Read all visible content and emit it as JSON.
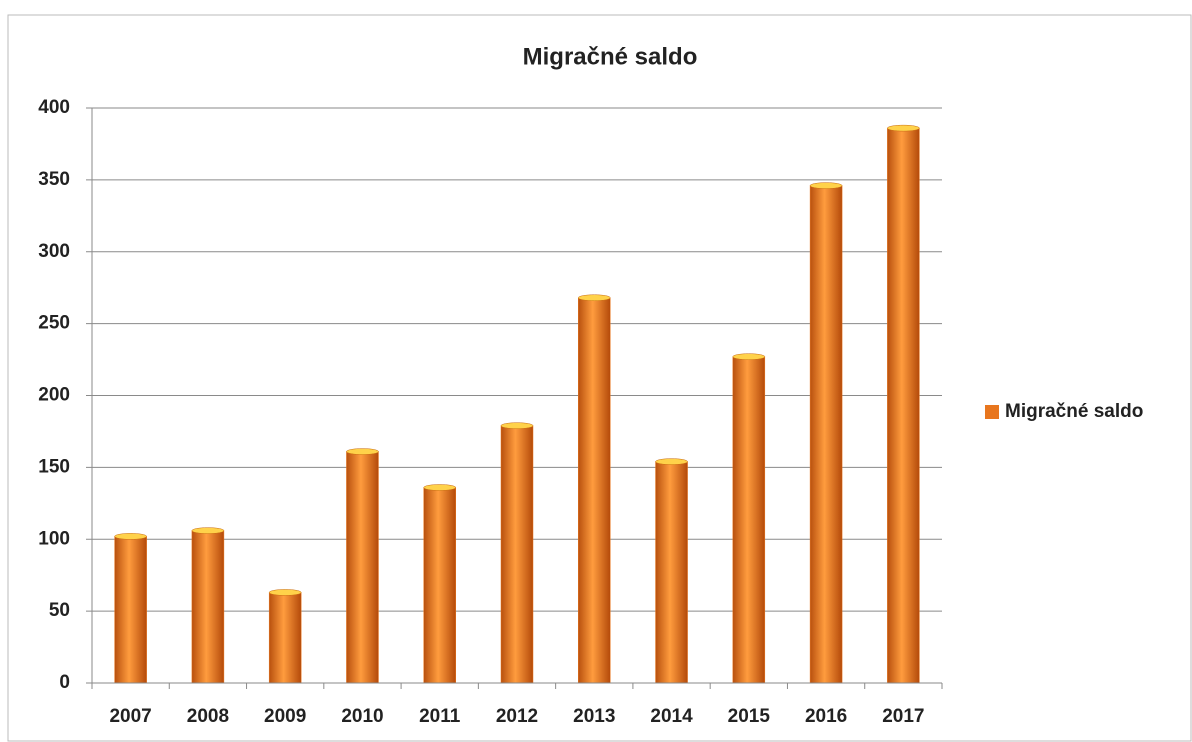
{
  "chart_data": {
    "type": "bar",
    "title": "Migračné saldo",
    "categories": [
      "2007",
      "2008",
      "2009",
      "2010",
      "2011",
      "2012",
      "2013",
      "2014",
      "2015",
      "2016",
      "2017"
    ],
    "series": [
      {
        "name": "Migračné saldo",
        "color": "#e8761e",
        "values": [
          102,
          106,
          63,
          161,
          136,
          179,
          268,
          154,
          227,
          346,
          386
        ]
      }
    ],
    "ylim": [
      0,
      400
    ],
    "yticks": [
      0,
      50,
      100,
      150,
      200,
      250,
      300,
      350,
      400
    ],
    "grid": true,
    "legend": "right"
  }
}
